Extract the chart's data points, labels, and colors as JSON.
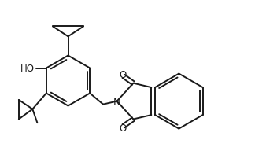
{
  "background_color": "#ffffff",
  "line_color": "#1a1a1a",
  "line_width": 1.4,
  "text_color": "#1a1a1a",
  "font_size": 8.5,
  "figsize": [
    3.38,
    2.07
  ],
  "dpi": 100,
  "xlim": [
    0,
    10
  ],
  "ylim": [
    0,
    6.1
  ]
}
